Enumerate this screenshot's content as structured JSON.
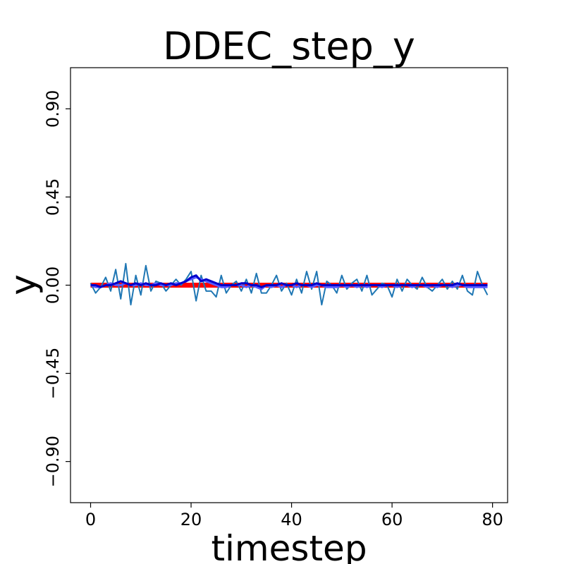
{
  "chart_data": {
    "type": "line",
    "title": "DDEC_step_y",
    "xlabel": "timestep",
    "ylabel": "y",
    "xlim": [
      -4,
      83
    ],
    "ylim": [
      -1.11,
      1.11
    ],
    "xticks": [
      0,
      20,
      40,
      60,
      80
    ],
    "xtick_labels": [
      "0",
      "20",
      "40",
      "60",
      "80"
    ],
    "yticks": [
      -0.9,
      -0.45,
      0.0,
      0.45,
      0.9
    ],
    "ytick_labels": [
      "−0.90",
      "−0.45",
      "0.00",
      "0.45",
      "0.90"
    ],
    "grid": false,
    "series": [
      {
        "color": "#ff0000",
        "values": [
          0.0,
          0.0,
          0.0,
          0.0,
          0.0,
          0.0,
          0.0,
          0.0,
          0.0,
          0.0,
          0.0,
          0.0,
          0.0,
          0.0,
          0.0,
          0.0,
          0.0,
          0.0,
          0.0,
          0.0,
          0.0,
          0.0,
          0.0,
          0.0,
          0.0,
          0.0,
          0.0,
          0.0,
          0.0,
          0.0,
          0.0,
          0.0,
          0.0,
          0.0,
          0.0,
          0.0,
          0.0,
          0.0,
          0.0,
          0.0,
          0.0,
          0.0,
          0.0,
          0.0,
          0.0,
          0.0,
          0.0,
          0.0,
          0.0,
          0.0,
          0.0,
          0.0,
          0.0,
          0.0,
          0.0,
          0.0,
          0.0,
          0.0,
          0.0,
          0.0,
          0.0,
          0.0,
          0.0,
          0.0,
          0.0,
          0.0,
          0.0,
          0.0,
          0.0,
          0.0,
          0.0,
          0.0,
          0.0,
          0.0,
          0.0,
          0.0,
          0.0,
          0.0,
          0.0,
          0.0
        ]
      },
      {
        "color": "#1f77b4",
        "values": [
          0.01,
          -0.04,
          -0.01,
          0.04,
          -0.03,
          0.08,
          -0.07,
          0.11,
          -0.1,
          0.05,
          -0.05,
          0.1,
          -0.03,
          0.02,
          0.01,
          -0.03,
          0.0,
          0.03,
          0.0,
          0.03,
          0.07,
          -0.08,
          0.05,
          -0.03,
          -0.03,
          -0.06,
          0.05,
          -0.04,
          0.0,
          0.02,
          -0.03,
          0.03,
          -0.04,
          0.06,
          -0.04,
          -0.04,
          0.0,
          0.05,
          -0.03,
          0.01,
          -0.05,
          0.03,
          -0.04,
          0.07,
          -0.02,
          0.07,
          -0.1,
          0.02,
          0.0,
          -0.04,
          0.05,
          -0.02,
          0.01,
          0.03,
          -0.03,
          0.05,
          -0.05,
          -0.02,
          0.01,
          0.0,
          -0.06,
          0.03,
          -0.03,
          0.03,
          0.0,
          -0.02,
          0.04,
          -0.01,
          -0.03,
          0.0,
          0.03,
          -0.02,
          0.02,
          -0.02,
          0.05,
          -0.03,
          -0.05,
          0.07,
          0.0,
          -0.05
        ]
      },
      {
        "color": "#5a5aff",
        "values": [
          0.0,
          -0.01,
          -0.01,
          0.0,
          0.01,
          0.0,
          0.0,
          0.01,
          0.0,
          0.0,
          0.01,
          0.0,
          0.0,
          0.01,
          0.0,
          0.0,
          0.0,
          0.01,
          0.01,
          0.02,
          0.03,
          0.04,
          0.03,
          0.02,
          0.01,
          0.0,
          -0.01,
          -0.01,
          0.0,
          0.0,
          0.0,
          -0.01,
          0.0,
          -0.01,
          -0.02,
          0.0,
          -0.01,
          0.0,
          -0.01,
          0.0,
          0.0,
          -0.01,
          0.0,
          0.0,
          -0.01,
          0.0,
          0.0,
          -0.01,
          -0.01,
          -0.01,
          0.0,
          -0.01,
          0.0,
          -0.01,
          0.0,
          -0.01,
          0.0,
          0.0,
          -0.01,
          0.0,
          0.0,
          -0.01,
          0.0,
          0.0,
          -0.01,
          0.0,
          0.0,
          -0.01,
          0.0,
          -0.01,
          0.0,
          0.0,
          -0.01,
          0.0,
          0.0,
          -0.01,
          -0.01,
          -0.01,
          -0.01,
          -0.01
        ]
      },
      {
        "color": "#0000cc",
        "values": [
          0.0,
          0.0,
          -0.01,
          0.0,
          0.0,
          0.01,
          0.02,
          0.01,
          0.0,
          0.01,
          0.0,
          0.01,
          0.0,
          0.0,
          0.01,
          0.0,
          0.01,
          0.0,
          0.01,
          0.02,
          0.04,
          0.05,
          0.02,
          0.03,
          0.02,
          0.01,
          0.0,
          0.0,
          0.0,
          0.0,
          0.01,
          0.01,
          0.0,
          0.0,
          -0.01,
          0.0,
          0.0,
          0.0,
          0.01,
          0.0,
          0.0,
          0.01,
          0.0,
          0.0,
          0.0,
          0.01,
          0.0,
          0.0,
          0.0,
          0.0,
          0.0,
          0.0,
          0.0,
          0.0,
          0.0,
          0.0,
          0.0,
          0.0,
          0.0,
          0.0,
          0.0,
          0.0,
          0.0,
          0.0,
          0.0,
          0.0,
          0.0,
          0.0,
          0.0,
          0.0,
          0.0,
          0.0,
          0.0,
          0.01,
          0.0,
          0.0,
          0.0,
          0.0,
          0.0,
          0.0
        ]
      }
    ]
  }
}
